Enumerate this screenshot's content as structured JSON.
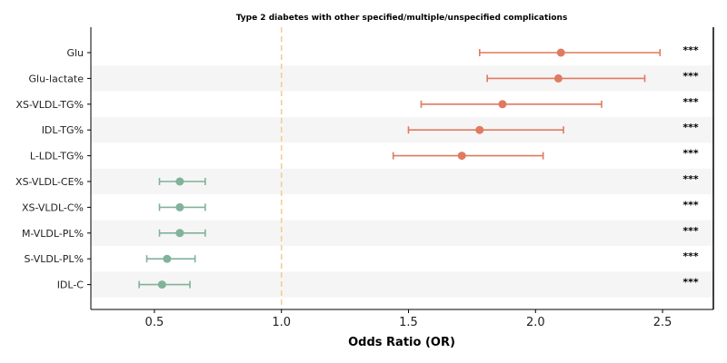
{
  "chart_data": {
    "type": "forest",
    "title": "Type 2 diabetes with other specified/multiple/unspecified complications",
    "xlabel": "Odds Ratio (OR)",
    "ylabel": "",
    "xlim": [
      0.25,
      2.7
    ],
    "xticks": [
      0.5,
      1.0,
      1.5,
      2.0,
      2.5
    ],
    "xtick_labels": [
      "0.5",
      "1.0",
      "1.5",
      "2.0",
      "2.5"
    ],
    "reference_line": 1.0,
    "grid": false,
    "row_shading": "alternating",
    "colors": {
      "risk": "#e07a5f",
      "protective": "#81b29a",
      "reference": "#f2cc8f",
      "shade": "#f5f5f5"
    },
    "rows": [
      {
        "label": "Glu",
        "or": 2.1,
        "lower": 1.78,
        "upper": 2.49,
        "sig": "***"
      },
      {
        "label": "Glu-lactate",
        "or": 2.09,
        "lower": 1.81,
        "upper": 2.43,
        "sig": "***"
      },
      {
        "label": "XS-VLDL-TG%",
        "or": 1.87,
        "lower": 1.55,
        "upper": 2.26,
        "sig": "***"
      },
      {
        "label": "IDL-TG%",
        "or": 1.78,
        "lower": 1.5,
        "upper": 2.11,
        "sig": "***"
      },
      {
        "label": "L-LDL-TG%",
        "or": 1.71,
        "lower": 1.44,
        "upper": 2.03,
        "sig": "***"
      },
      {
        "label": "XS-VLDL-CE%",
        "or": 0.6,
        "lower": 0.52,
        "upper": 0.7,
        "sig": "***"
      },
      {
        "label": "XS-VLDL-C%",
        "or": 0.6,
        "lower": 0.52,
        "upper": 0.7,
        "sig": "***"
      },
      {
        "label": "M-VLDL-PL%",
        "or": 0.6,
        "lower": 0.52,
        "upper": 0.7,
        "sig": "***"
      },
      {
        "label": "S-VLDL-PL%",
        "or": 0.55,
        "lower": 0.47,
        "upper": 0.66,
        "sig": "***"
      },
      {
        "label": "IDL-C",
        "or": 0.53,
        "lower": 0.44,
        "upper": 0.64,
        "sig": "***"
      }
    ]
  }
}
